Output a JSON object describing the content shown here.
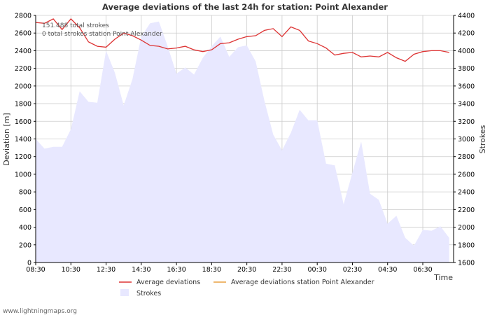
{
  "chart_data": {
    "type": "line",
    "title": "Average deviations of the last 24h for station: Point Alexander",
    "xlabel": "Time",
    "ylabel_left": "Deviation  [m]",
    "ylabel_right": "Strokes",
    "ylim_left": [
      0,
      2800
    ],
    "ylim_right": [
      1600,
      4400
    ],
    "yticks_left": [
      0,
      200,
      400,
      600,
      800,
      1000,
      1200,
      1400,
      1600,
      1800,
      2000,
      2200,
      2400,
      2600,
      2800
    ],
    "yticks_right": [
      1600,
      1800,
      2000,
      2200,
      2400,
      2600,
      2800,
      3000,
      3200,
      3400,
      3600,
      3800,
      4000,
      4200,
      4400
    ],
    "x_tick_labels": [
      "08:30",
      "10:30",
      "12:30",
      "14:30",
      "16:30",
      "18:30",
      "20:30",
      "22:30",
      "00:30",
      "02:30",
      "04:30",
      "06:30"
    ],
    "x_hours": [
      0,
      0.5,
      1,
      1.5,
      2,
      2.5,
      3,
      3.5,
      4,
      4.5,
      5,
      5.5,
      6,
      6.5,
      7,
      7.5,
      8,
      8.5,
      9,
      9.5,
      10,
      10.5,
      11,
      11.5,
      12,
      12.5,
      13,
      13.5,
      14,
      14.5,
      15,
      15.5,
      16,
      16.5,
      17,
      17.5,
      18,
      18.5,
      19,
      19.5,
      20,
      20.5,
      21,
      21.5,
      22,
      22.5,
      23,
      23.5
    ],
    "annotations": [
      "151.488 total strokes",
      "0 total strokes station Point Alexander"
    ],
    "series": [
      {
        "name": "Average deviations",
        "axis": "left",
        "color": "#dd3333",
        "values": [
          2720,
          2710,
          2760,
          2640,
          2760,
          2660,
          2500,
          2450,
          2440,
          2530,
          2600,
          2570,
          2520,
          2460,
          2450,
          2420,
          2430,
          2450,
          2410,
          2390,
          2410,
          2480,
          2490,
          2530,
          2560,
          2570,
          2630,
          2650,
          2560,
          2670,
          2630,
          2510,
          2480,
          2430,
          2350,
          2370,
          2380,
          2330,
          2340,
          2330,
          2380,
          2320,
          2280,
          2360,
          2390,
          2400,
          2400,
          2380
        ]
      },
      {
        "name": "Average deviations station Point Alexander",
        "axis": "left",
        "color": "#e8a040",
        "values": []
      },
      {
        "name": "Strokes",
        "axis": "right",
        "type": "area",
        "color": "#e8e8ff",
        "values": [
          3000,
          2890,
          2910,
          2910,
          3110,
          3540,
          3420,
          3410,
          4000,
          3750,
          3380,
          3680,
          4160,
          4310,
          4330,
          4050,
          3740,
          3810,
          3730,
          3920,
          4050,
          4160,
          3930,
          4040,
          4060,
          3880,
          3430,
          3050,
          2870,
          3070,
          3330,
          3210,
          3210,
          2720,
          2700,
          2260,
          2620,
          2970,
          2380,
          2310,
          2040,
          2130,
          1880,
          1790,
          1970,
          1960,
          2010,
          1880
        ]
      }
    ],
    "legend": [
      {
        "label": "Average deviations",
        "kind": "line",
        "color": "#dd3333"
      },
      {
        "label": "Average deviations station Point Alexander",
        "kind": "line",
        "color": "#e8a040"
      },
      {
        "label": "Strokes",
        "kind": "area",
        "color": "#e8e8ff"
      }
    ],
    "legend_position": "bottom",
    "grid": true,
    "grid_color": "#cccccc"
  },
  "footer": {
    "credit": "www.lightningmaps.org"
  }
}
